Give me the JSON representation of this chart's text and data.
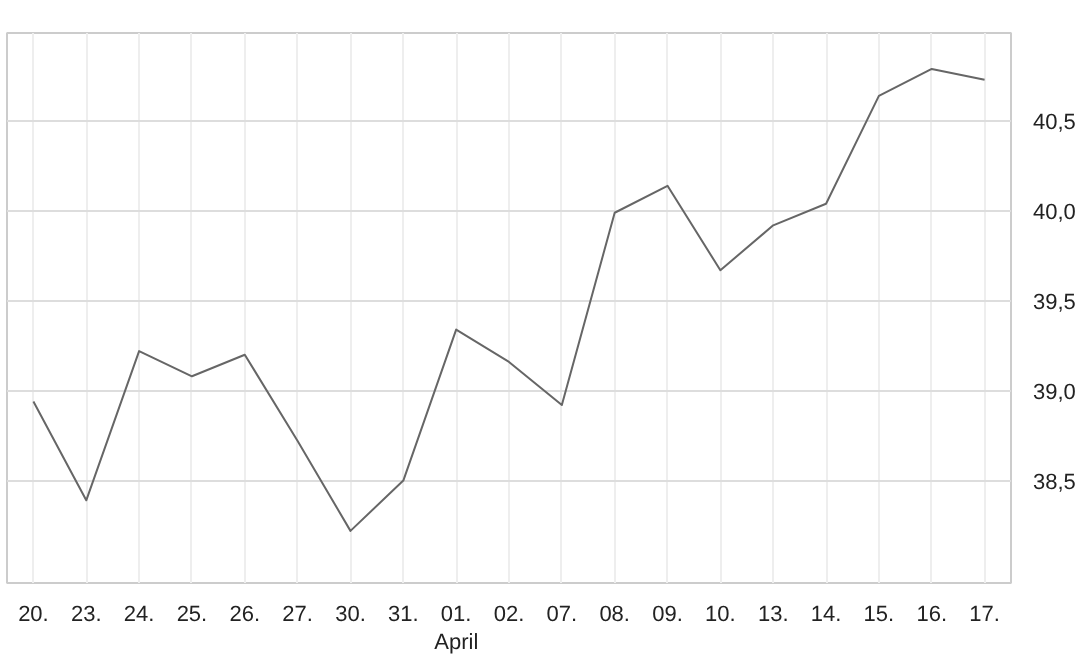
{
  "chart_data": {
    "type": "line",
    "categories": [
      "20.",
      "23.",
      "24.",
      "25.",
      "26.",
      "27.",
      "30.",
      "31.",
      "01.",
      "02.",
      "07.",
      "08.",
      "09.",
      "10.",
      "13.",
      "14.",
      "15.",
      "16.",
      "17."
    ],
    "series": [
      {
        "color": "#666666",
        "values": [
          38.94,
          38.39,
          39.22,
          39.08,
          39.2,
          38.72,
          38.22,
          38.5,
          39.34,
          39.16,
          38.92,
          39.99,
          40.14,
          39.67,
          39.92,
          40.04,
          40.64,
          40.79,
          40.73
        ]
      }
    ],
    "ylim": [
      37.93,
      40.99
    ],
    "yticks": [
      {
        "value": 38.5,
        "label": "38,5"
      },
      {
        "value": 39.0,
        "label": "39,0"
      },
      {
        "value": 39.5,
        "label": "39,5"
      },
      {
        "value": 40.0,
        "label": "40,0"
      },
      {
        "value": 40.5,
        "label": "40,5"
      }
    ],
    "annotations": [
      "April"
    ],
    "grid": true,
    "marker": "none",
    "line_style": "solid"
  }
}
